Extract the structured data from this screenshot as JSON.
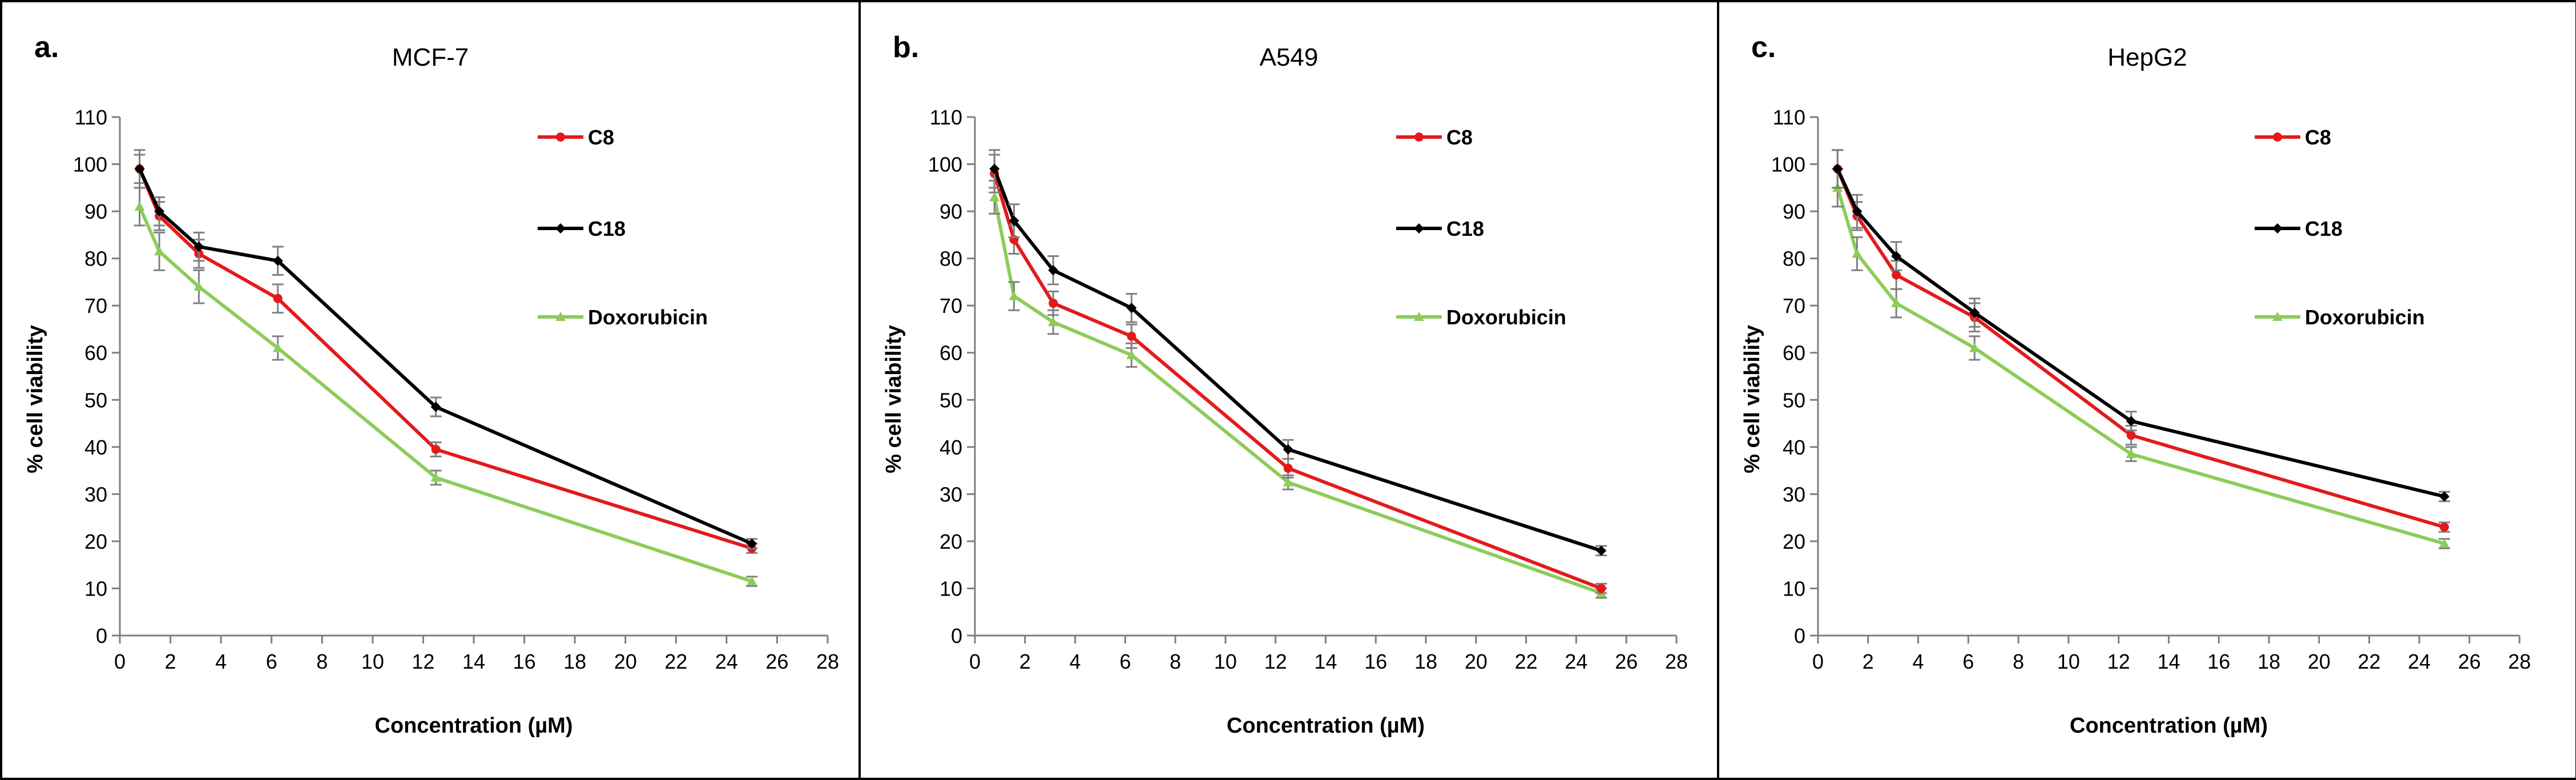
{
  "figure": {
    "panels": [
      {
        "letter": "a.",
        "title": "MCF-7"
      },
      {
        "letter": "b.",
        "title": "A549"
      },
      {
        "letter": "c.",
        "title": "HepG2"
      }
    ]
  },
  "colors": {
    "C8": "#e31a1c",
    "C18": "#000000",
    "Doxorubicin": "#8ccc5a",
    "axis": "#7f7f7f",
    "errorbar": "#808080",
    "border": "#000000"
  },
  "chart_data": [
    {
      "type": "line",
      "title": "MCF-7",
      "xlabel": "Concentration (µM)",
      "ylabel": "% cell viability",
      "xlim": [
        0,
        28
      ],
      "ylim": [
        0,
        110
      ],
      "xticks": [
        0,
        2,
        4,
        6,
        8,
        10,
        12,
        14,
        16,
        18,
        20,
        22,
        24,
        26,
        28
      ],
      "yticks": [
        0,
        10,
        20,
        30,
        40,
        50,
        60,
        70,
        80,
        90,
        100,
        110
      ],
      "grid": false,
      "legend": "top-right",
      "x": [
        0.78,
        1.56,
        3.125,
        6.25,
        12.5,
        25
      ],
      "series": [
        {
          "name": "C8",
          "values": [
            99,
            89,
            81,
            71.5,
            39.5,
            18.5
          ],
          "errors": [
            3,
            3,
            3,
            3,
            1.5,
            1
          ]
        },
        {
          "name": "C18",
          "values": [
            99,
            90,
            82.5,
            79.5,
            48.5,
            19.5
          ],
          "errors": [
            4,
            3,
            3,
            3,
            2,
            1
          ]
        },
        {
          "name": "Doxorubicin",
          "values": [
            91,
            81.5,
            74,
            61,
            33.5,
            11.5
          ],
          "errors": [
            4,
            4,
            3.5,
            2.5,
            1.5,
            1
          ]
        }
      ]
    },
    {
      "type": "line",
      "title": "A549",
      "xlabel": "Concentration (µM)",
      "ylabel": "% cell viability",
      "xlim": [
        0,
        28
      ],
      "ylim": [
        0,
        110
      ],
      "xticks": [
        0,
        2,
        4,
        6,
        8,
        10,
        12,
        14,
        16,
        18,
        20,
        22,
        24,
        26,
        28
      ],
      "yticks": [
        0,
        10,
        20,
        30,
        40,
        50,
        60,
        70,
        80,
        90,
        100,
        110
      ],
      "grid": false,
      "legend": "top-right",
      "x": [
        0.78,
        1.56,
        3.125,
        6.25,
        12.5,
        25
      ],
      "series": [
        {
          "name": "C8",
          "values": [
            98,
            84,
            70.5,
            63.5,
            35.5,
            10
          ],
          "errors": [
            4,
            3,
            2.5,
            2.5,
            2,
            1
          ]
        },
        {
          "name": "C18",
          "values": [
            99,
            88,
            77.5,
            69.5,
            39.5,
            18
          ],
          "errors": [
            4,
            3.5,
            3,
            3,
            2,
            1
          ]
        },
        {
          "name": "Doxorubicin",
          "values": [
            93,
            72,
            66.5,
            59.5,
            32.5,
            9
          ],
          "errors": [
            3.5,
            3,
            2.5,
            2.5,
            1.5,
            1
          ]
        }
      ]
    },
    {
      "type": "line",
      "title": "HepG2",
      "xlabel": "Concentration (µM)",
      "ylabel": "% cell viability",
      "xlim": [
        0,
        28
      ],
      "ylim": [
        0,
        110
      ],
      "xticks": [
        0,
        2,
        4,
        6,
        8,
        10,
        12,
        14,
        16,
        18,
        20,
        22,
        24,
        26,
        28
      ],
      "yticks": [
        0,
        10,
        20,
        30,
        40,
        50,
        60,
        70,
        80,
        90,
        100,
        110
      ],
      "grid": false,
      "legend": "top-right",
      "x": [
        0.78,
        1.56,
        3.125,
        6.25,
        12.5,
        25
      ],
      "series": [
        {
          "name": "C8",
          "values": [
            99,
            89,
            76.5,
            67.5,
            42.5,
            23
          ],
          "errors": [
            4,
            3,
            3,
            3,
            2,
            1
          ]
        },
        {
          "name": "C18",
          "values": [
            99,
            90,
            80.5,
            68.5,
            45.5,
            29.5
          ],
          "errors": [
            4,
            3.5,
            3,
            3,
            2,
            1
          ]
        },
        {
          "name": "Doxorubicin",
          "values": [
            95,
            81,
            70.5,
            61,
            38.5,
            19.5
          ],
          "errors": [
            4,
            3.5,
            3,
            2.5,
            1.5,
            1
          ]
        }
      ]
    }
  ]
}
